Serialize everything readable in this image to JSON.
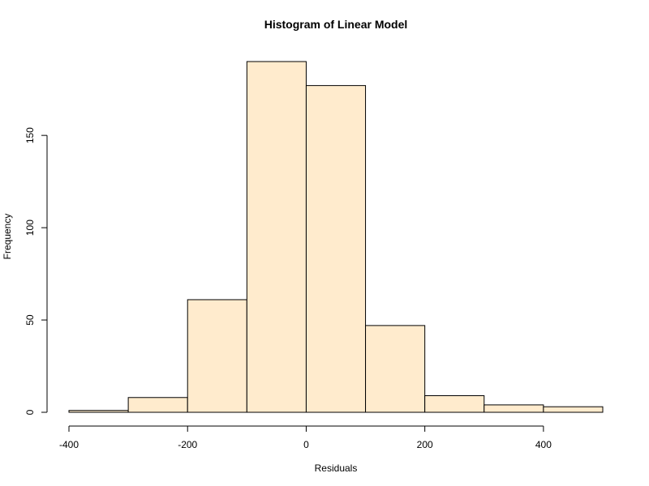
{
  "chart_data": {
    "type": "bar",
    "title": "Histogram of Linear Model",
    "xlabel": "Residuals",
    "ylabel": "Frequency",
    "bin_edges": [
      -400,
      -300,
      -200,
      -100,
      0,
      100,
      200,
      300,
      400,
      500
    ],
    "values": [
      1,
      8,
      61,
      190,
      177,
      47,
      9,
      4,
      3
    ],
    "xlim": [
      -400,
      500
    ],
    "ylim": [
      0,
      190
    ],
    "x_ticks": [
      -400,
      -200,
      0,
      200,
      400
    ],
    "y_ticks": [
      0,
      50,
      100,
      150
    ],
    "bar_color": "#FFEBCD",
    "grid": false
  }
}
